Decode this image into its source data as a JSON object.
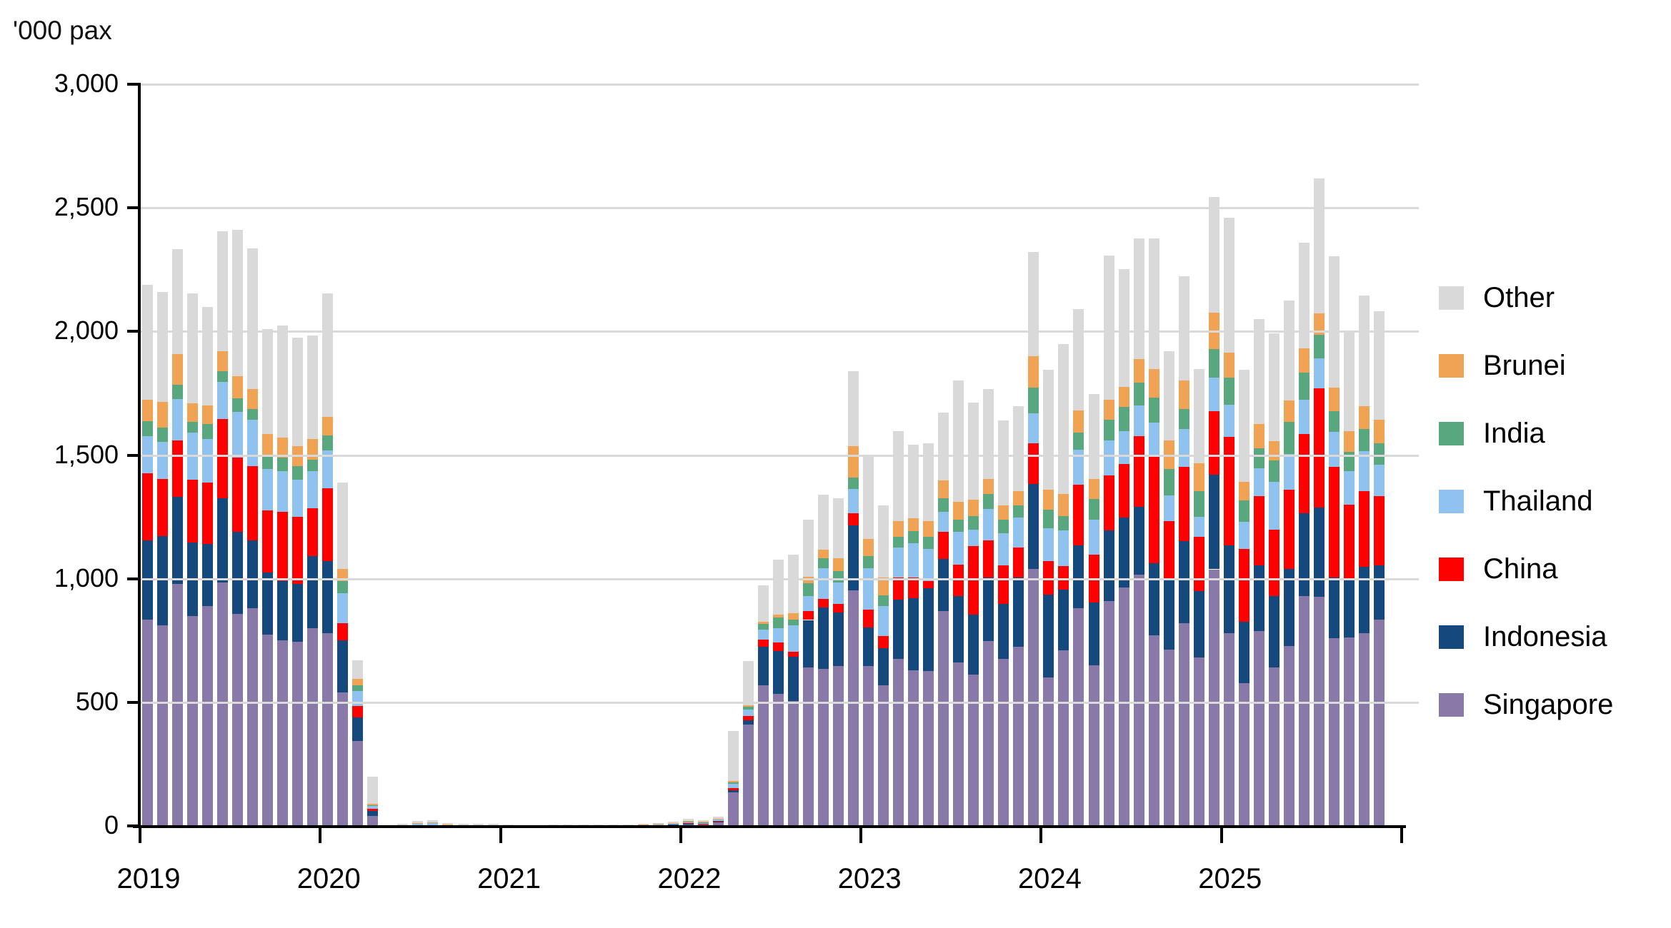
{
  "chart_data": {
    "type": "bar",
    "stacked": true,
    "unit_label": "'000 pax",
    "grid": true,
    "y_axis": {
      "min": 0,
      "max": 3000,
      "tick_interval": 500,
      "tick_labels": [
        "0",
        "500",
        "1,000",
        "1,500",
        "2,000",
        "2,500",
        "3,000"
      ]
    },
    "x_axis": {
      "years": [
        "2019",
        "2020",
        "2021",
        "2022",
        "2023",
        "2024",
        "2025"
      ]
    },
    "legend_top_to_bottom": [
      "Other",
      "Brunei",
      "India",
      "Thailand",
      "China",
      "Indonesia",
      "Singapore"
    ],
    "series_bottom_to_top": [
      "Singapore",
      "Indonesia",
      "China",
      "Thailand",
      "India",
      "Brunei",
      "Other"
    ],
    "colors": {
      "Other": "#d9d9d9",
      "Brunei": "#f0a355",
      "India": "#59a77f",
      "Thailand": "#8fc2ee",
      "China": "#fe0000",
      "Indonesia": "#15497e",
      "Singapore": "#8979a8"
    },
    "values_order": [
      "Singapore",
      "Indonesia",
      "China",
      "Thailand",
      "India",
      "Brunei",
      "Other"
    ],
    "months": [
      [
        "2019-01",
        835,
        320,
        272,
        150,
        60,
        88,
        465
      ],
      [
        "2019-02",
        810,
        363,
        229,
        151,
        59,
        102,
        447
      ],
      [
        "2019-03",
        980,
        350,
        230,
        168,
        56,
        125,
        423
      ],
      [
        "2019-04",
        850,
        295,
        255,
        190,
        45,
        75,
        445
      ],
      [
        "2019-05",
        890,
        250,
        250,
        175,
        60,
        75,
        400
      ],
      [
        "2019-06",
        985,
        340,
        320,
        150,
        45,
        80,
        485
      ],
      [
        "2019-07",
        857,
        333,
        300,
        185,
        55,
        90,
        590
      ],
      [
        "2019-08",
        880,
        275,
        300,
        187,
        44,
        81,
        568
      ],
      [
        "2019-09",
        775,
        250,
        250,
        170,
        55,
        85,
        425
      ],
      [
        "2019-10",
        750,
        240,
        280,
        165,
        55,
        80,
        455
      ],
      [
        "2019-11",
        745,
        235,
        270,
        150,
        55,
        80,
        440
      ],
      [
        "2019-12",
        800,
        290,
        195,
        150,
        45,
        85,
        420
      ],
      [
        "2020-01",
        780,
        290,
        295,
        155,
        60,
        75,
        500
      ],
      [
        "2020-02",
        540,
        210,
        70,
        120,
        50,
        50,
        350
      ],
      [
        "2020-03",
        345,
        95,
        45,
        60,
        25,
        25,
        75
      ],
      [
        "2020-04",
        40,
        20,
        8,
        12,
        5,
        5,
        110
      ],
      [
        "2020-05",
        1,
        0,
        0,
        1,
        0,
        0,
        2
      ],
      [
        "2020-06",
        1,
        0,
        0,
        3,
        0,
        0,
        4
      ],
      [
        "2020-07",
        2,
        1,
        0,
        7,
        0,
        1,
        8
      ],
      [
        "2020-08",
        2,
        1,
        0,
        8,
        0,
        3,
        8
      ],
      [
        "2020-09",
        1,
        0,
        0,
        4,
        0,
        1,
        6
      ],
      [
        "2020-10",
        1,
        0,
        0,
        3,
        0,
        0,
        5
      ],
      [
        "2020-11",
        1,
        0,
        0,
        2,
        0,
        0,
        5
      ],
      [
        "2020-12",
        1,
        0,
        0,
        2,
        0,
        0,
        6
      ],
      [
        "2021-01",
        1,
        0,
        0,
        1,
        0,
        0,
        3
      ],
      [
        "2021-02",
        1,
        0,
        0,
        1,
        0,
        0,
        2
      ],
      [
        "2021-03",
        1,
        0,
        0,
        1,
        0,
        0,
        2
      ],
      [
        "2021-04",
        1,
        0,
        0,
        1,
        0,
        0,
        3
      ],
      [
        "2021-05",
        1,
        0,
        0,
        1,
        0,
        0,
        3
      ],
      [
        "2021-06",
        1,
        0,
        0,
        1,
        0,
        0,
        3
      ],
      [
        "2021-07",
        2,
        0,
        0,
        1,
        0,
        0,
        3
      ],
      [
        "2021-08",
        2,
        0,
        0,
        1,
        0,
        0,
        3
      ],
      [
        "2021-09",
        2,
        0,
        0,
        1,
        0,
        1,
        3
      ],
      [
        "2021-10",
        2,
        0,
        0,
        2,
        0,
        1,
        3
      ],
      [
        "2021-11",
        4,
        1,
        0,
        2,
        1,
        1,
        3
      ],
      [
        "2021-12",
        6,
        1,
        1,
        2,
        1,
        1,
        4
      ],
      [
        "2022-01",
        8,
        2,
        2,
        5,
        1,
        1,
        9
      ],
      [
        "2022-02",
        6,
        2,
        2,
        4,
        1,
        1,
        6
      ],
      [
        "2022-03",
        14,
        3,
        3,
        6,
        2,
        1,
        9
      ],
      [
        "2022-04",
        135,
        10,
        8,
        18,
        4,
        8,
        200
      ],
      [
        "2022-05",
        410,
        18,
        16,
        26,
        12,
        6,
        180
      ],
      [
        "2022-06",
        568,
        157,
        28,
        42,
        21,
        11,
        146
      ],
      [
        "2022-07",
        534,
        174,
        34,
        57,
        45,
        12,
        221
      ],
      [
        "2022-08",
        506,
        179,
        19,
        106,
        23,
        26,
        238
      ],
      [
        "2022-09",
        642,
        191,
        36,
        61,
        51,
        26,
        232
      ],
      [
        "2022-10",
        636,
        248,
        34,
        125,
        40,
        34,
        222
      ],
      [
        "2022-11",
        648,
        216,
        34,
        88,
        46,
        51,
        241
      ],
      [
        "2022-12",
        952,
        264,
        49,
        99,
        45,
        128,
        303
      ],
      [
        "2023-01",
        647,
        157,
        72,
        167,
        47,
        71,
        336
      ],
      [
        "2023-02",
        569,
        150,
        50,
        121,
        43,
        71,
        293
      ],
      [
        "2023-03",
        676,
        238,
        90,
        122,
        43,
        64,
        364
      ],
      [
        "2023-04",
        629,
        292,
        83,
        139,
        50,
        50,
        300
      ],
      [
        "2023-05",
        626,
        335,
        29,
        129,
        50,
        64,
        314
      ],
      [
        "2023-06",
        869,
        211,
        110,
        81,
        55,
        71,
        276
      ],
      [
        "2023-07",
        660,
        270,
        128,
        132,
        50,
        72,
        490
      ],
      [
        "2023-08",
        611,
        243,
        279,
        64,
        57,
        65,
        392
      ],
      [
        "2023-09",
        747,
        257,
        150,
        129,
        60,
        61,
        362
      ],
      [
        "2023-10",
        676,
        221,
        157,
        129,
        57,
        57,
        343
      ],
      [
        "2023-11",
        726,
        278,
        121,
        121,
        50,
        57,
        346
      ],
      [
        "2023-12",
        1040,
        343,
        164,
        122,
        103,
        129,
        420
      ],
      [
        "2024-01",
        600,
        335,
        135,
        135,
        75,
        80,
        485
      ],
      [
        "2024-02",
        709,
        246,
        97,
        142,
        60,
        89,
        605
      ],
      [
        "2024-03",
        881,
        253,
        247,
        141,
        68,
        89,
        411
      ],
      [
        "2024-04",
        649,
        254,
        194,
        142,
        82,
        82,
        344
      ],
      [
        "2024-05",
        910,
        284,
        224,
        142,
        82,
        82,
        582
      ],
      [
        "2024-06",
        963,
        283,
        217,
        134,
        97,
        82,
        475
      ],
      [
        "2024-07",
        1015,
        276,
        285,
        126,
        90,
        97,
        488
      ],
      [
        "2024-08",
        770,
        292,
        430,
        139,
        101,
        117,
        526
      ],
      [
        "2024-09",
        714,
        283,
        235,
        106,
        105,
        117,
        361
      ],
      [
        "2024-10",
        819,
        332,
        300,
        154,
        81,
        117,
        421
      ],
      [
        "2024-11",
        681,
        268,
        219,
        81,
        105,
        114,
        381
      ],
      [
        "2024-12",
        1038,
        384,
        256,
        135,
        117,
        145,
        470
      ],
      [
        "2025-01",
        779,
        356,
        438,
        130,
        110,
        100,
        548
      ],
      [
        "2025-02",
        577,
        248,
        294,
        112,
        85,
        76,
        454
      ],
      [
        "2025-03",
        789,
        265,
        281,
        113,
        80,
        97,
        425
      ],
      [
        "2025-04",
        641,
        290,
        268,
        193,
        85,
        80,
        434
      ],
      [
        "2025-05",
        728,
        310,
        321,
        145,
        129,
        88,
        405
      ],
      [
        "2025-06",
        930,
        336,
        318,
        140,
        109,
        100,
        427
      ],
      [
        "2025-07",
        926,
        361,
        482,
        121,
        96,
        88,
        546
      ],
      [
        "2025-08",
        758,
        247,
        447,
        142,
        83,
        97,
        529
      ],
      [
        "2025-09",
        763,
        237,
        300,
        135,
        78,
        84,
        403
      ],
      [
        "2025-10",
        779,
        269,
        306,
        161,
        91,
        91,
        447
      ],
      [
        "2025-11",
        835,
        218,
        282,
        126,
        87,
        94,
        439
      ]
    ]
  }
}
